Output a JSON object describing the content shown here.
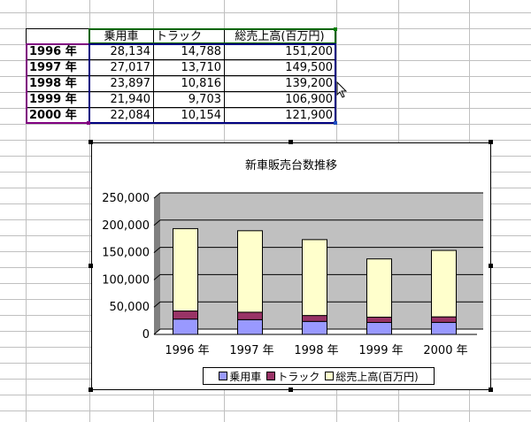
{
  "table": {
    "headers": [
      "乗用車",
      "トラック",
      "総売上高(百万円)"
    ],
    "rows": [
      {
        "year": "1996 年",
        "cars": "28,134",
        "trucks": "14,788",
        "total": "151,200"
      },
      {
        "year": "1997 年",
        "cars": "27,017",
        "trucks": "13,710",
        "total": "149,500"
      },
      {
        "year": "1998 年",
        "cars": "23,897",
        "trucks": "10,816",
        "total": "139,200"
      },
      {
        "year": "1999 年",
        "cars": "21,940",
        "trucks": "9,703",
        "total": "106,900"
      },
      {
        "year": "2000 年",
        "cars": "22,084",
        "trucks": "10,154",
        "total": "121,900"
      }
    ]
  },
  "chart_data": {
    "type": "bar",
    "stacked": true,
    "title": "新車販売台数推移",
    "categories": [
      "1996 年",
      "1997 年",
      "1998 年",
      "1999 年",
      "2000 年"
    ],
    "series": [
      {
        "name": "乗用車",
        "values": [
          28134,
          27017,
          23897,
          21940,
          22084
        ],
        "color": "#9999ff"
      },
      {
        "name": "トラック",
        "values": [
          14788,
          13710,
          10816,
          9703,
          10154
        ],
        "color": "#993366"
      },
      {
        "name": "総売上高(百万円)",
        "values": [
          151200,
          149500,
          139200,
          106900,
          121900
        ],
        "color": "#ffffcc"
      }
    ],
    "yticks": [
      "0",
      "50,000",
      "100,000",
      "150,000",
      "200,000",
      "250,000"
    ],
    "ylim": [
      0,
      250000
    ],
    "plot_background": "#c0c0c0",
    "grid": true,
    "legend_position": "bottom"
  },
  "colors": {
    "gridline": "#c0c0c0",
    "selection_border": "#000080",
    "selection_handle": "#2050c0",
    "year_border": "#800080",
    "header_border": "#006400"
  }
}
